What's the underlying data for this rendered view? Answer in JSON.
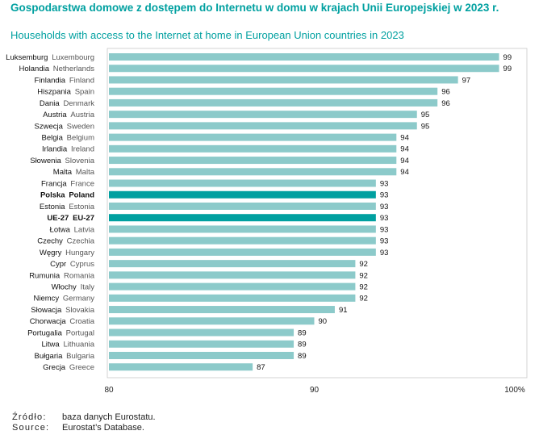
{
  "header": {
    "title_pl": "Gospodarstwa domowe z dostępem do Internetu w domu w krajach Unii Europejskiej w 2023 r.",
    "title_en": "Households with access to the Internet at home in European Union countries in 2023"
  },
  "chart_data": {
    "type": "bar",
    "orientation": "horizontal",
    "categories_pl": [
      "Luksemburg",
      "Holandia",
      "Finlandia",
      "Hiszpania",
      "Dania",
      "Austria",
      "Szwecja",
      "Belgia",
      "Irlandia",
      "Słowenia",
      "Malta",
      "Francja",
      "Polska",
      "Estonia",
      "UE-27",
      "Łotwa",
      "Czechy",
      "Węgry",
      "Cypr",
      "Rumunia",
      "Włochy",
      "Niemcy",
      "Słowacja",
      "Chorwacja",
      "Portugalia",
      "Litwa",
      "Bułgaria",
      "Grecja"
    ],
    "categories_en": [
      "Luxembourg",
      "Netherlands",
      "Finland",
      "Spain",
      "Denmark",
      "Austria",
      "Sweden",
      "Belgium",
      "Ireland",
      "Slovenia",
      "Malta",
      "France",
      "Poland",
      "Estonia",
      "EU-27",
      "Latvia",
      "Czechia",
      "Hungary",
      "Cyprus",
      "Romania",
      "Italy",
      "Germany",
      "Slovakia",
      "Croatia",
      "Portugal",
      "Lithuania",
      "Bulgaria",
      "Greece"
    ],
    "values": [
      99,
      99,
      97,
      96,
      96,
      95,
      95,
      94,
      94,
      94,
      94,
      93,
      93,
      93,
      93,
      93,
      93,
      93,
      92,
      92,
      92,
      92,
      91,
      90,
      89,
      89,
      89,
      87
    ],
    "highlighted": [
      "Polska",
      "UE-27"
    ],
    "xlim": [
      80,
      100
    ],
    "x_ticks": [
      "80",
      "90",
      "100%"
    ],
    "colors": {
      "bar": "#8ccaca",
      "bar_highlight": "#00a0a0",
      "title": "#00a0a0"
    }
  },
  "source": {
    "pl_key": "Źródło:",
    "pl_value": "baza danych Eurostatu.",
    "en_key": "Source:",
    "en_value": "Eurostat’s Database."
  }
}
